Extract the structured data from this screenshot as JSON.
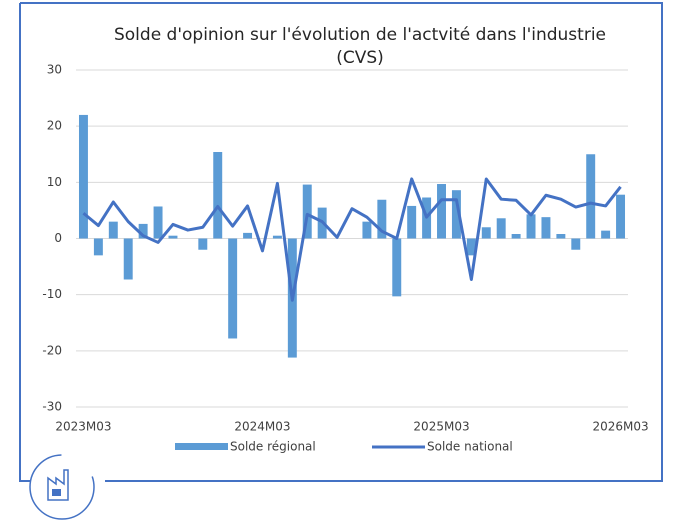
{
  "chart_data": {
    "type": "combo",
    "title": "Solde d'opinion sur l'évolution de l'actvité dans l'industrie (CVS)",
    "categories": [
      "2023M03",
      null,
      null,
      null,
      null,
      null,
      null,
      null,
      null,
      null,
      null,
      null,
      "2024M03",
      null,
      null,
      null,
      null,
      null,
      null,
      null,
      null,
      null,
      null,
      null,
      "2025M03",
      null,
      null,
      null,
      null,
      null,
      null,
      null,
      null,
      null,
      null,
      null,
      "2026M03"
    ],
    "series": [
      {
        "name": "Solde régional",
        "type": "bar",
        "color": "#5b9bd5",
        "values": [
          22,
          -3,
          3,
          -7.3,
          2.6,
          5.7,
          0.5,
          0,
          -2,
          15.4,
          -17.8,
          1,
          0,
          0.5,
          -21.2,
          9.6,
          5.5,
          0,
          0,
          3,
          6.9,
          -10.3,
          5.8,
          7.3,
          9.7,
          8.6,
          -3,
          2,
          3.6,
          0.8,
          4.3,
          3.8,
          0.8,
          -2,
          15,
          1.4,
          7.8
        ]
      },
      {
        "name": "Solde national",
        "type": "line",
        "color": "#4472c4",
        "values": [
          4.5,
          2.3,
          6.5,
          3,
          0.5,
          -0.7,
          2.5,
          1.5,
          2,
          5.7,
          2.2,
          5.8,
          -2.2,
          9.8,
          -11,
          4.3,
          3,
          0.2,
          5.3,
          3.8,
          1.3,
          0,
          10.6,
          3.8,
          6.9,
          6.9,
          -7.3,
          10.6,
          7,
          6.8,
          4.2,
          7.7,
          7,
          5.6,
          6.3,
          5.8,
          9.2
        ]
      }
    ],
    "ylim": [
      -30,
      30
    ],
    "yticks": [
      -30,
      -20,
      -10,
      0,
      10,
      20,
      30
    ],
    "grid": true
  }
}
